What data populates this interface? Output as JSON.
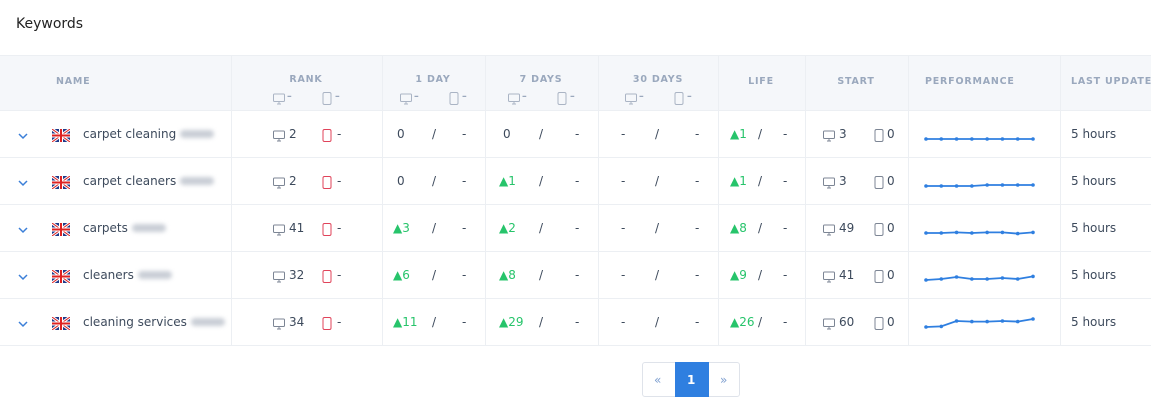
{
  "header": {
    "title": "Keywords"
  },
  "table": {
    "columns": [
      {
        "label": "NAME"
      },
      {
        "label": "RANK",
        "desktop": "–",
        "mobile": "–"
      },
      {
        "label": "1 DAY",
        "desktop": "–",
        "mobile": "–"
      },
      {
        "label": "7 DAYS",
        "desktop": "–",
        "mobile": "–"
      },
      {
        "label": "30 DAYS",
        "desktop": "–",
        "mobile": "–"
      },
      {
        "label": "LIFE"
      },
      {
        "label": "START"
      },
      {
        "label": "PERFORMANCE"
      },
      {
        "label": "LAST UPDATE"
      }
    ],
    "separator": "/",
    "rows": [
      {
        "keyword": "carpet cleaning",
        "rank": {
          "desktop": 2,
          "mobile": "-"
        },
        "day1": [
          "0",
          "-"
        ],
        "day7": [
          "0",
          "-"
        ],
        "day30": [
          "-",
          "-"
        ],
        "life": [
          "▲1",
          "-"
        ],
        "start": {
          "desktop": 3,
          "mobile": 0
        },
        "performance": [
          0,
          0,
          0,
          0,
          0,
          0,
          0,
          0
        ],
        "last_update": "5 hours"
      },
      {
        "keyword": "carpet cleaners",
        "rank": {
          "desktop": 2,
          "mobile": "-"
        },
        "day1": [
          "0",
          "-"
        ],
        "day7": [
          "▲1",
          "-"
        ],
        "day30": [
          "-",
          "-"
        ],
        "life": [
          "▲1",
          "-"
        ],
        "start": {
          "desktop": 3,
          "mobile": 0
        },
        "performance": [
          0,
          0,
          0,
          0,
          0.5,
          0.5,
          0.5,
          0.5
        ],
        "last_update": "5 hours"
      },
      {
        "keyword": "carpets",
        "rank": {
          "desktop": 41,
          "mobile": "-"
        },
        "day1": [
          "▲3",
          "-"
        ],
        "day7": [
          "▲2",
          "-"
        ],
        "day30": [
          "-",
          "-"
        ],
        "life": [
          "▲8",
          "-"
        ],
        "start": {
          "desktop": 49,
          "mobile": 0
        },
        "performance": [
          0,
          0,
          0.3,
          0,
          0.3,
          0.3,
          -0.3,
          0.3
        ],
        "last_update": "5 hours"
      },
      {
        "keyword": "cleaners",
        "rank": {
          "desktop": 32,
          "mobile": "-"
        },
        "day1": [
          "▲6",
          "-"
        ],
        "day7": [
          "▲8",
          "-"
        ],
        "day30": [
          "-",
          "-"
        ],
        "life": [
          "▲9",
          "-"
        ],
        "start": {
          "desktop": 41,
          "mobile": 0
        },
        "performance": [
          0,
          0.5,
          1.5,
          0.5,
          0.5,
          1,
          0.5,
          1.8
        ],
        "last_update": "5 hours"
      },
      {
        "keyword": "cleaning services",
        "rank": {
          "desktop": 34,
          "mobile": "-"
        },
        "day1": [
          "▲11",
          "-"
        ],
        "day7": [
          "▲29",
          "-"
        ],
        "day30": [
          "-",
          "-"
        ],
        "life": [
          "▲26",
          "-"
        ],
        "start": {
          "desktop": 60,
          "mobile": 0
        },
        "performance": [
          0,
          0.3,
          3,
          2.7,
          2.7,
          3,
          2.7,
          4
        ],
        "last_update": "5 hours"
      }
    ]
  },
  "pagination": {
    "prev": "«",
    "current": "1",
    "next": "»"
  }
}
